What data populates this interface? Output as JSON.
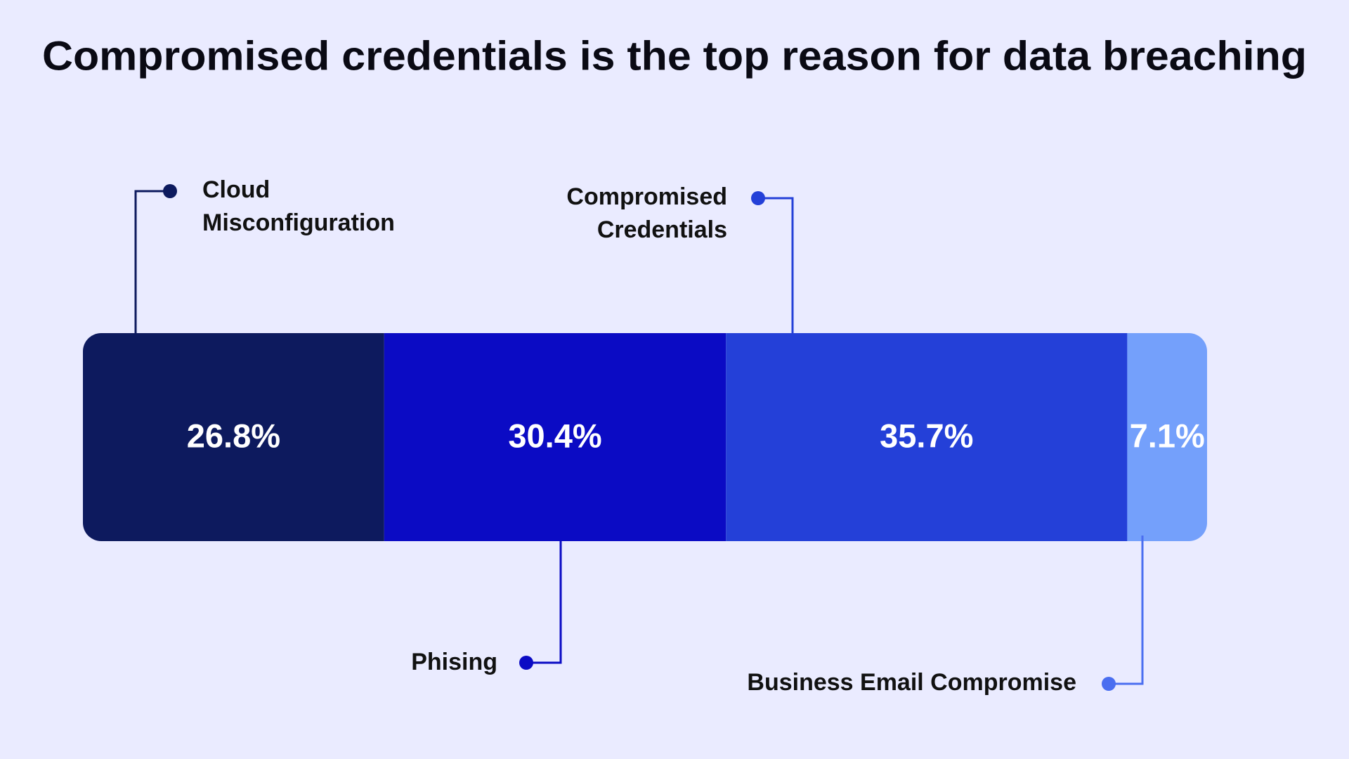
{
  "chart_data": {
    "type": "stacked-bar",
    "title": "Compromised credentials is the top reason for data breaching",
    "series": [
      {
        "name": "Cloud Misconfiguration",
        "color": "#0d1a5e",
        "values": [
          26.8
        ],
        "value_labels": [
          "26.8%"
        ]
      },
      {
        "name": "Phising",
        "color": "#0b0bc4",
        "values": [
          30.4
        ],
        "value_labels": [
          "30.4%"
        ]
      },
      {
        "name": "Compromised Credentials",
        "color": "#2440d8",
        "values": [
          35.7
        ],
        "value_labels": [
          "35.7%"
        ]
      },
      {
        "name": "Business Email Compromise",
        "color": "#74a0fb",
        "values": [
          7.1
        ],
        "value_labels": [
          "7.1%"
        ]
      }
    ]
  }
}
